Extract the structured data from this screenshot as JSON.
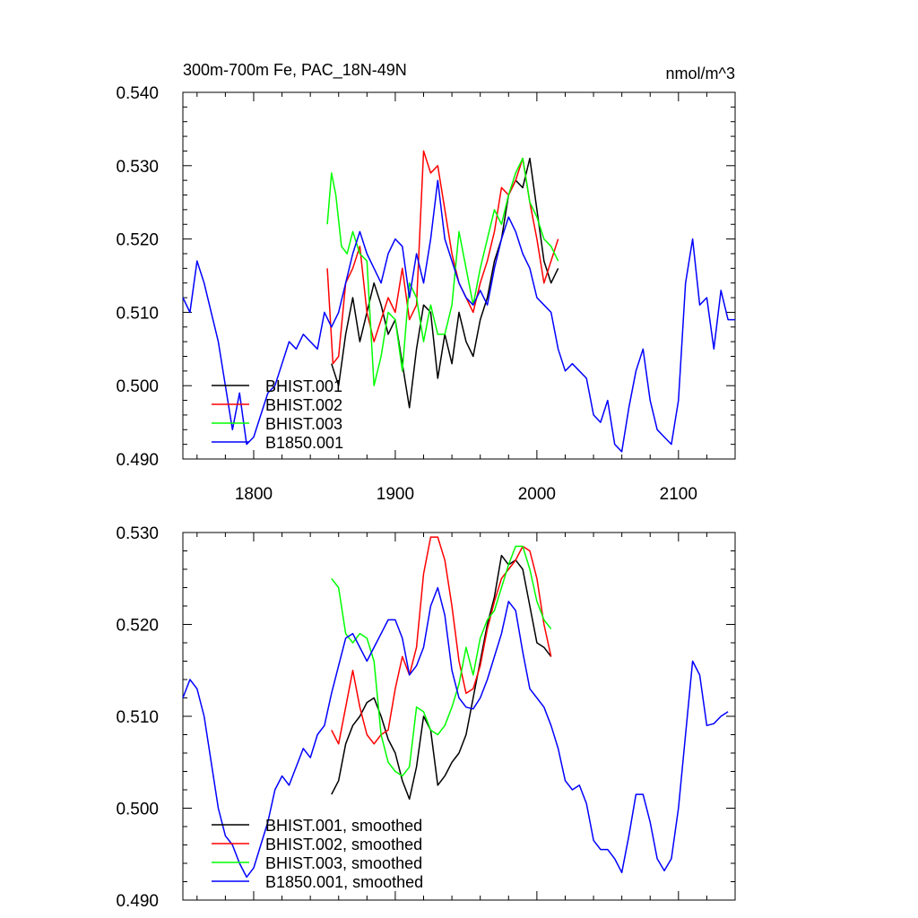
{
  "chart_data": [
    {
      "type": "line",
      "title": "300m-700m Fe, PAC_18N-49N",
      "units_label": "nmol/m^3",
      "xlim": [
        1750,
        2140
      ],
      "ylim": [
        0.49,
        0.54
      ],
      "x_ticks": [
        1800,
        1900,
        2000,
        2100
      ],
      "x_tick_labels": [
        "1800",
        "1900",
        "2000",
        "2100"
      ],
      "y_ticks": [
        0.49,
        0.5,
        0.51,
        0.52,
        0.53,
        0.54
      ],
      "y_tick_labels": [
        "0.490",
        "0.500",
        "0.510",
        "0.520",
        "0.530",
        "0.540"
      ],
      "legend_position": "bottom-left",
      "grid": false,
      "series": [
        {
          "name": "BHIST.001",
          "color": "#000000",
          "x": [
            1855,
            1860,
            1865,
            1870,
            1875,
            1880,
            1885,
            1890,
            1895,
            1900,
            1905,
            1910,
            1915,
            1920,
            1925,
            1930,
            1935,
            1940,
            1945,
            1950,
            1955,
            1960,
            1965,
            1970,
            1975,
            1980,
            1985,
            1990,
            1995,
            2000,
            2005,
            2010,
            2015
          ],
          "y": [
            0.503,
            0.5,
            0.507,
            0.512,
            0.506,
            0.51,
            0.514,
            0.511,
            0.507,
            0.509,
            0.503,
            0.497,
            0.505,
            0.511,
            0.51,
            0.501,
            0.507,
            0.503,
            0.51,
            0.506,
            0.504,
            0.509,
            0.512,
            0.517,
            0.52,
            0.526,
            0.528,
            0.527,
            0.531,
            0.524,
            0.517,
            0.514,
            0.516
          ]
        },
        {
          "name": "BHIST.002",
          "color": "#ff0000",
          "x": [
            1852,
            1856,
            1860,
            1865,
            1870,
            1875,
            1880,
            1885,
            1890,
            1895,
            1900,
            1905,
            1910,
            1915,
            1920,
            1925,
            1930,
            1935,
            1940,
            1945,
            1950,
            1955,
            1960,
            1965,
            1970,
            1975,
            1980,
            1985,
            1990,
            1995,
            2000,
            2005,
            2010,
            2015
          ],
          "y": [
            0.516,
            0.503,
            0.504,
            0.514,
            0.516,
            0.519,
            0.51,
            0.506,
            0.509,
            0.512,
            0.51,
            0.516,
            0.509,
            0.511,
            0.532,
            0.529,
            0.53,
            0.524,
            0.518,
            0.514,
            0.512,
            0.51,
            0.514,
            0.517,
            0.521,
            0.527,
            0.526,
            0.528,
            0.531,
            0.525,
            0.52,
            0.514,
            0.517,
            0.52
          ]
        },
        {
          "name": "BHIST.003",
          "color": "#00ff00",
          "x": [
            1852,
            1855,
            1858,
            1862,
            1866,
            1870,
            1875,
            1880,
            1885,
            1890,
            1895,
            1900,
            1905,
            1910,
            1915,
            1920,
            1925,
            1930,
            1935,
            1940,
            1945,
            1950,
            1955,
            1960,
            1965,
            1970,
            1975,
            1980,
            1985,
            1990,
            1995,
            2000,
            2005,
            2010,
            2015
          ],
          "y": [
            0.522,
            0.529,
            0.526,
            0.519,
            0.518,
            0.521,
            0.518,
            0.517,
            0.5,
            0.504,
            0.51,
            0.509,
            0.502,
            0.514,
            0.512,
            0.506,
            0.511,
            0.507,
            0.507,
            0.511,
            0.521,
            0.516,
            0.511,
            0.516,
            0.52,
            0.524,
            0.522,
            0.526,
            0.529,
            0.531,
            0.525,
            0.523,
            0.52,
            0.519,
            0.517
          ]
        },
        {
          "name": "B1850.001",
          "color": "#0000ff",
          "x": [
            1750,
            1755,
            1760,
            1765,
            1770,
            1775,
            1780,
            1785,
            1790,
            1795,
            1800,
            1805,
            1810,
            1815,
            1820,
            1825,
            1830,
            1835,
            1840,
            1845,
            1850,
            1855,
            1860,
            1865,
            1870,
            1875,
            1880,
            1885,
            1890,
            1895,
            1900,
            1905,
            1910,
            1915,
            1920,
            1925,
            1930,
            1935,
            1940,
            1945,
            1950,
            1955,
            1960,
            1965,
            1970,
            1975,
            1980,
            1985,
            1990,
            1995,
            2000,
            2005,
            2010,
            2015,
            2020,
            2025,
            2030,
            2035,
            2040,
            2045,
            2050,
            2055,
            2060,
            2065,
            2070,
            2075,
            2080,
            2085,
            2090,
            2095,
            2100,
            2105,
            2110,
            2115,
            2120,
            2125,
            2130,
            2135,
            2140
          ],
          "y": [
            0.512,
            0.51,
            0.517,
            0.514,
            0.51,
            0.506,
            0.5,
            0.494,
            0.499,
            0.492,
            0.493,
            0.496,
            0.499,
            0.5,
            0.503,
            0.506,
            0.505,
            0.507,
            0.506,
            0.505,
            0.51,
            0.508,
            0.51,
            0.514,
            0.518,
            0.521,
            0.518,
            0.516,
            0.514,
            0.518,
            0.52,
            0.519,
            0.512,
            0.518,
            0.514,
            0.52,
            0.528,
            0.52,
            0.517,
            0.514,
            0.512,
            0.511,
            0.513,
            0.511,
            0.516,
            0.52,
            0.523,
            0.521,
            0.518,
            0.516,
            0.512,
            0.511,
            0.51,
            0.505,
            0.502,
            0.503,
            0.502,
            0.501,
            0.496,
            0.495,
            0.498,
            0.492,
            0.491,
            0.497,
            0.502,
            0.505,
            0.498,
            0.494,
            0.493,
            0.492,
            0.498,
            0.514,
            0.52,
            0.511,
            0.512,
            0.505,
            0.513,
            0.509,
            0.509
          ]
        }
      ]
    },
    {
      "type": "line",
      "xlim": [
        1750,
        2140
      ],
      "ylim": [
        0.49,
        0.53
      ],
      "x_ticks": [
        1800,
        1900,
        2000,
        2100
      ],
      "y_ticks": [
        0.49,
        0.5,
        0.51,
        0.52,
        0.53
      ],
      "y_tick_labels": [
        "0.490",
        "0.500",
        "0.510",
        "0.520",
        "0.530"
      ],
      "legend_position": "bottom-left",
      "grid": false,
      "series": [
        {
          "name": "BHIST.001, smoothed",
          "color": "#000000",
          "x": [
            1855,
            1860,
            1865,
            1870,
            1875,
            1880,
            1885,
            1890,
            1895,
            1900,
            1905,
            1910,
            1915,
            1920,
            1925,
            1930,
            1935,
            1940,
            1945,
            1950,
            1955,
            1960,
            1965,
            1970,
            1975,
            1980,
            1985,
            1990,
            1995,
            2000,
            2005,
            2010
          ],
          "y": [
            0.5015,
            0.503,
            0.507,
            0.509,
            0.51,
            0.5115,
            0.512,
            0.51,
            0.5075,
            0.506,
            0.503,
            0.501,
            0.5045,
            0.51,
            0.5085,
            0.5025,
            0.5035,
            0.505,
            0.506,
            0.508,
            0.512,
            0.516,
            0.52,
            0.523,
            0.5275,
            0.5265,
            0.527,
            0.526,
            0.522,
            0.518,
            0.5175,
            0.5165
          ]
        },
        {
          "name": "BHIST.002, smoothed",
          "color": "#ff0000",
          "x": [
            1855,
            1860,
            1865,
            1870,
            1875,
            1880,
            1885,
            1890,
            1895,
            1900,
            1905,
            1910,
            1915,
            1920,
            1925,
            1930,
            1935,
            1940,
            1945,
            1950,
            1955,
            1960,
            1965,
            1970,
            1975,
            1980,
            1985,
            1990,
            1995,
            2000,
            2005,
            2010
          ],
          "y": [
            0.5085,
            0.507,
            0.511,
            0.515,
            0.511,
            0.508,
            0.507,
            0.508,
            0.5085,
            0.513,
            0.5165,
            0.5145,
            0.5175,
            0.5255,
            0.5295,
            0.5295,
            0.527,
            0.522,
            0.516,
            0.5125,
            0.513,
            0.5155,
            0.5195,
            0.5225,
            0.525,
            0.526,
            0.527,
            0.5285,
            0.528,
            0.525,
            0.52,
            0.5165
          ]
        },
        {
          "name": "BHIST.003, smoothed",
          "color": "#00ff00",
          "x": [
            1855,
            1860,
            1865,
            1870,
            1875,
            1880,
            1885,
            1890,
            1895,
            1900,
            1905,
            1910,
            1915,
            1920,
            1925,
            1930,
            1935,
            1940,
            1945,
            1950,
            1955,
            1960,
            1965,
            1970,
            1975,
            1980,
            1985,
            1990,
            1995,
            2000,
            2005,
            2010
          ],
          "y": [
            0.525,
            0.524,
            0.519,
            0.518,
            0.519,
            0.5185,
            0.516,
            0.508,
            0.505,
            0.504,
            0.5035,
            0.5045,
            0.511,
            0.5105,
            0.5085,
            0.508,
            0.509,
            0.511,
            0.5135,
            0.5175,
            0.5145,
            0.5185,
            0.5205,
            0.5215,
            0.524,
            0.5265,
            0.5285,
            0.5285,
            0.526,
            0.5225,
            0.5205,
            0.5195
          ]
        },
        {
          "name": "B1850.001, smoothed",
          "color": "#0000ff",
          "x": [
            1750,
            1755,
            1760,
            1765,
            1770,
            1775,
            1780,
            1785,
            1790,
            1795,
            1800,
            1805,
            1810,
            1815,
            1820,
            1825,
            1830,
            1835,
            1840,
            1845,
            1850,
            1855,
            1860,
            1865,
            1870,
            1875,
            1880,
            1885,
            1890,
            1895,
            1900,
            1905,
            1910,
            1915,
            1920,
            1925,
            1930,
            1935,
            1940,
            1945,
            1950,
            1955,
            1960,
            1965,
            1970,
            1975,
            1980,
            1985,
            1990,
            1995,
            2000,
            2005,
            2010,
            2015,
            2020,
            2025,
            2030,
            2035,
            2040,
            2045,
            2050,
            2055,
            2060,
            2065,
            2070,
            2075,
            2080,
            2085,
            2090,
            2095,
            2100,
            2105,
            2110,
            2115,
            2120,
            2125,
            2130,
            2135
          ],
          "y": [
            0.512,
            0.514,
            0.513,
            0.51,
            0.505,
            0.5,
            0.497,
            0.496,
            0.494,
            0.4925,
            0.4935,
            0.496,
            0.4985,
            0.502,
            0.5035,
            0.5025,
            0.5045,
            0.5065,
            0.5055,
            0.508,
            0.509,
            0.5125,
            0.5155,
            0.5185,
            0.519,
            0.5175,
            0.516,
            0.5175,
            0.519,
            0.5205,
            0.5205,
            0.5185,
            0.5145,
            0.5155,
            0.5175,
            0.522,
            0.524,
            0.521,
            0.515,
            0.512,
            0.511,
            0.5108,
            0.512,
            0.514,
            0.5165,
            0.519,
            0.5225,
            0.5215,
            0.517,
            0.513,
            0.512,
            0.511,
            0.509,
            0.5065,
            0.503,
            0.502,
            0.5025,
            0.5005,
            0.4965,
            0.4955,
            0.4955,
            0.4945,
            0.493,
            0.497,
            0.5015,
            0.5015,
            0.4985,
            0.4945,
            0.4932,
            0.4945,
            0.5,
            0.508,
            0.516,
            0.5145,
            0.509,
            0.5092,
            0.51,
            0.5105
          ]
        }
      ]
    }
  ]
}
